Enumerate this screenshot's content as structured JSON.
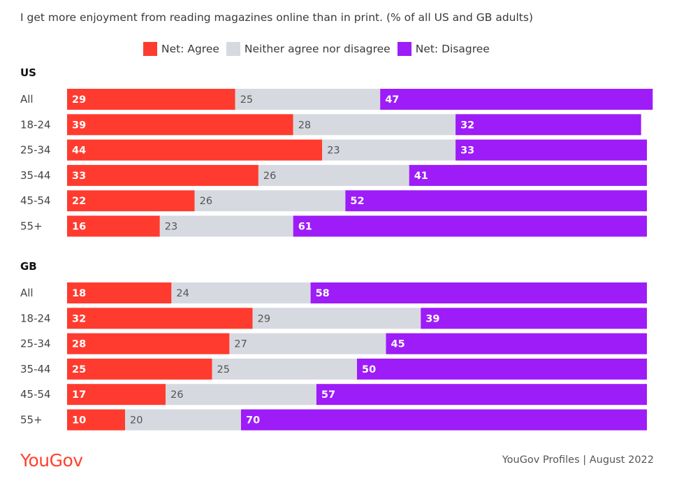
{
  "chart_data": {
    "type": "bar",
    "orientation": "horizontal",
    "stacked": true,
    "title": "I get more enjoyment from reading magazines online than in print. (% of all US and GB adults)",
    "legend_placement": "top",
    "colors": {
      "agree": "#ff3b2f",
      "neither": "#d7d9e0",
      "disagree": "#9d1cf7"
    },
    "series_names": [
      "Net: Agree",
      "Neither agree nor disagree",
      "Net: Disagree"
    ],
    "groups": [
      {
        "name": "US",
        "categories": [
          "All",
          "18-24",
          "25-34",
          "35-44",
          "45-54",
          "55+"
        ],
        "series": [
          {
            "name": "Net: Agree",
            "key": "agree",
            "values": [
              29,
              39,
              44,
              33,
              22,
              16
            ]
          },
          {
            "name": "Neither agree nor disagree",
            "key": "neither",
            "values": [
              25,
              28,
              23,
              26,
              26,
              23
            ]
          },
          {
            "name": "Net: Disagree",
            "key": "disagree",
            "values": [
              47,
              32,
              33,
              41,
              52,
              61
            ]
          }
        ]
      },
      {
        "name": "GB",
        "categories": [
          "All",
          "18-24",
          "25-34",
          "35-44",
          "45-54",
          "55+"
        ],
        "series": [
          {
            "name": "Net: Agree",
            "key": "agree",
            "values": [
              18,
              32,
              28,
              25,
              17,
              10
            ]
          },
          {
            "name": "Neither agree nor disagree",
            "key": "neither",
            "values": [
              24,
              29,
              27,
              25,
              26,
              20
            ]
          },
          {
            "name": "Net: Disagree",
            "key": "disagree",
            "values": [
              58,
              39,
              45,
              50,
              57,
              70
            ]
          }
        ]
      }
    ]
  },
  "footer": {
    "logo_text": "YouGov",
    "logo_color": "#ff412c",
    "source": "YouGov Profiles | August 2022"
  }
}
